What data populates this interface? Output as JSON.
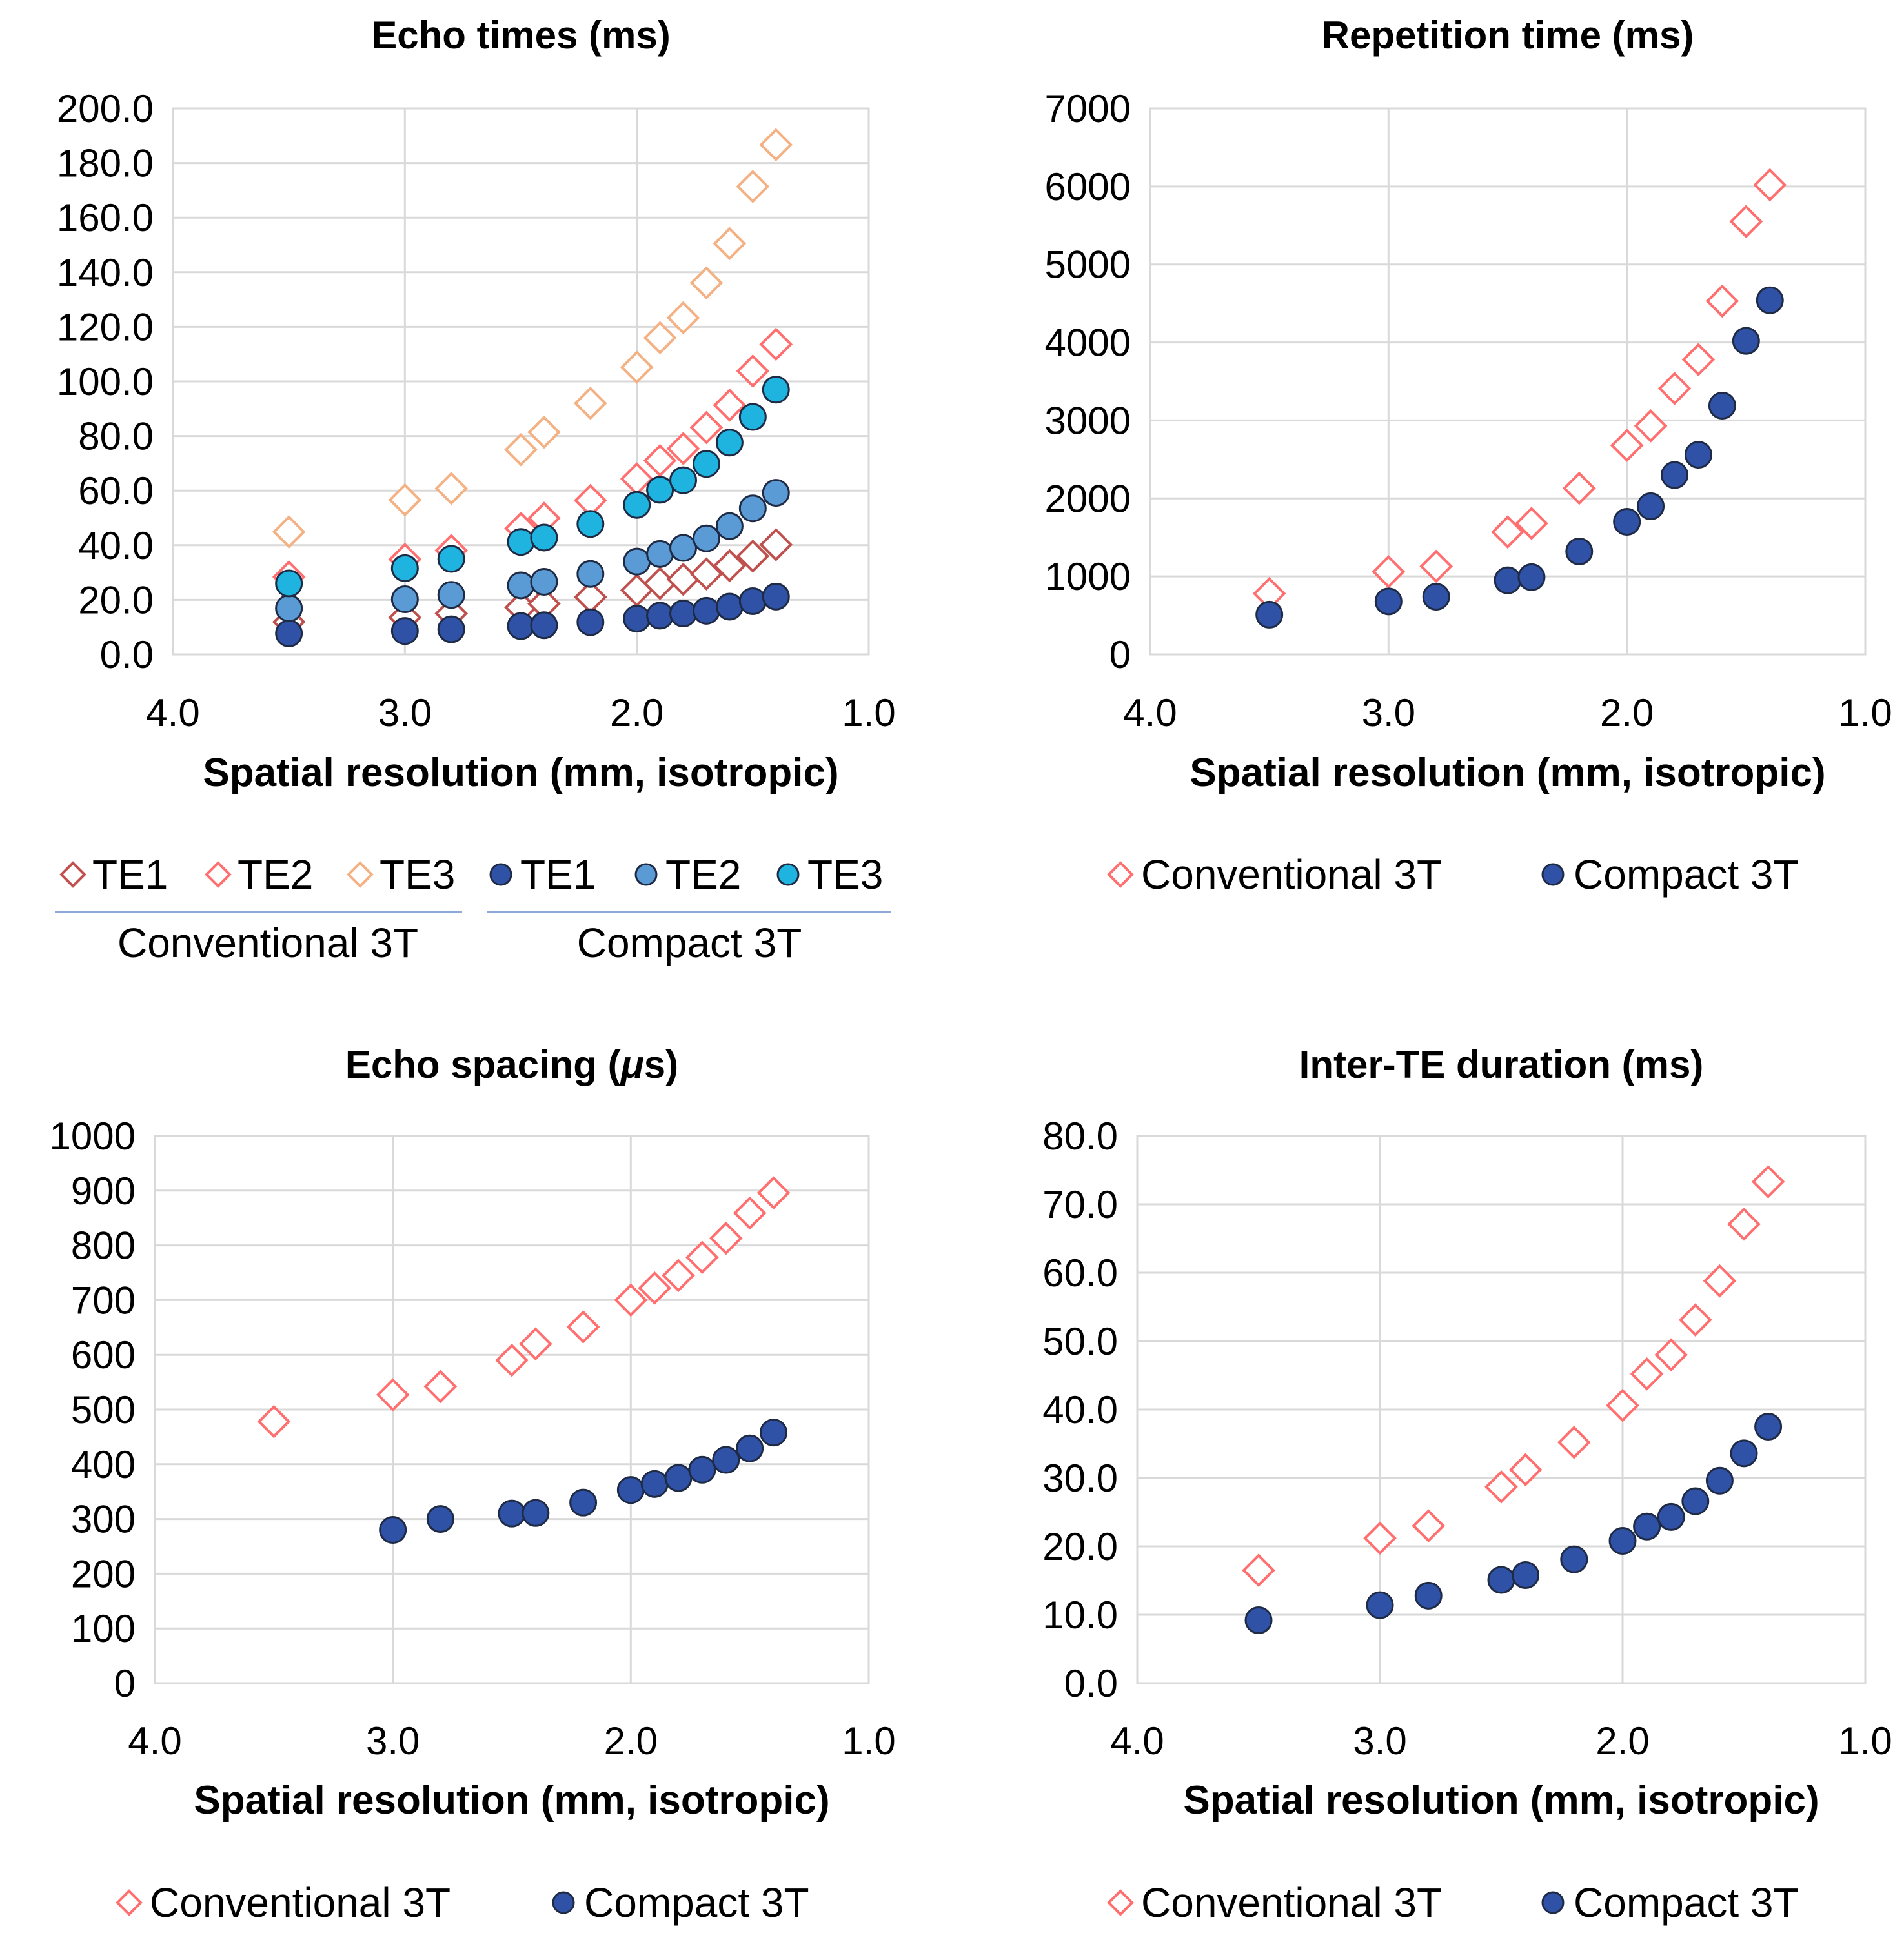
{
  "chart_data": [
    {
      "type": "scatter",
      "title": "Echo times (ms)",
      "xlabel": "Spatial resolution (mm, isotropic)",
      "ylabel": "",
      "xlim": [
        4.0,
        1.0
      ],
      "ylim": [
        0,
        200
      ],
      "x_ticks": [
        "4.0",
        "3.0",
        "2.0",
        "1.0"
      ],
      "y_ticks": [
        "0.0",
        "20.0",
        "40.0",
        "60.0",
        "80.0",
        "100.0",
        "120.0",
        "140.0",
        "160.0",
        "180.0",
        "200.0"
      ],
      "legend_position": "bottom",
      "legend_groups": [
        "Conventional 3T",
        "Compact 3T"
      ],
      "x": [
        3.5,
        3.0,
        2.8,
        2.5,
        2.4,
        2.2,
        2.0,
        1.9,
        1.8,
        1.7,
        1.6,
        1.5,
        1.4
      ],
      "series": [
        {
          "name": "TE1",
          "group": "Conventional 3T",
          "marker": "diamond-open",
          "color": "#c0504d",
          "values": [
            11.9,
            13.5,
            15.0,
            17.2,
            18.6,
            21.0,
            23.5,
            26.0,
            27.5,
            29.5,
            32.5,
            36.0,
            40.2
          ]
        },
        {
          "name": "TE2",
          "group": "Conventional 3T",
          "marker": "diamond-open",
          "color": "#ff6f6f",
          "values": [
            28.4,
            34.8,
            38.1,
            46.2,
            49.9,
            56.4,
            64.3,
            71.0,
            75.4,
            83.1,
            91.3,
            103.8,
            113.6
          ]
        },
        {
          "name": "TE3",
          "group": "Conventional 3T",
          "marker": "diamond-open",
          "color": "#f4b183",
          "values": [
            44.9,
            56.6,
            60.8,
            75.0,
            81.4,
            92.0,
            105.2,
            116.0,
            123.3,
            136.1,
            150.5,
            171.4,
            186.7
          ]
        },
        {
          "name": "TE1",
          "group": "Compact 3T",
          "marker": "circle",
          "color": "#2f52a6",
          "values": [
            7.7,
            8.6,
            9.2,
            10.4,
            10.7,
            11.8,
            13.1,
            14.2,
            15.0,
            16.0,
            17.5,
            19.5,
            21.2
          ]
        },
        {
          "name": "TE2",
          "group": "Compact 3T",
          "marker": "circle",
          "color": "#5b9bd5",
          "values": [
            16.9,
            20.2,
            21.8,
            25.3,
            26.6,
            29.5,
            34.0,
            36.8,
            39.0,
            42.5,
            47.0,
            53.5,
            59.2
          ]
        },
        {
          "name": "TE3",
          "group": "Compact 3T",
          "marker": "circle",
          "color": "#1fb4e0",
          "values": [
            26.0,
            31.6,
            35.0,
            41.2,
            42.8,
            47.8,
            54.8,
            60.3,
            63.8,
            69.8,
            77.6,
            87.0,
            97.0
          ]
        }
      ]
    },
    {
      "type": "scatter",
      "title": "Repetition time (ms)",
      "xlabel": "Spatial resolution (mm, isotropic)",
      "ylabel": "",
      "xlim": [
        4.0,
        1.0
      ],
      "ylim": [
        0,
        7000
      ],
      "x_ticks": [
        "4.0",
        "3.0",
        "2.0",
        "1.0"
      ],
      "y_ticks": [
        "0",
        "1000",
        "2000",
        "3000",
        "4000",
        "5000",
        "6000",
        "7000"
      ],
      "legend_position": "bottom",
      "series": [
        {
          "name": "Conventional 3T",
          "marker": "diamond-open",
          "color": "#ff6f6f",
          "x": [
            3.5,
            3.0,
            2.8,
            2.5,
            2.4,
            2.2,
            2.0,
            1.9,
            1.8,
            1.7,
            1.6,
            1.5,
            1.4
          ],
          "values": [
            780,
            1060,
            1130,
            1570,
            1680,
            2130,
            2680,
            2930,
            3410,
            3780,
            4530,
            5550,
            6020
          ]
        },
        {
          "name": "Compact 3T",
          "marker": "circle",
          "color": "#2f52a6",
          "x": [
            3.5,
            3.0,
            2.8,
            2.5,
            2.4,
            2.2,
            2.0,
            1.9,
            1.8,
            1.7,
            1.6,
            1.5,
            1.4
          ],
          "values": [
            510,
            680,
            740,
            950,
            990,
            1320,
            1700,
            1900,
            2300,
            2560,
            3190,
            4020,
            4540
          ]
        }
      ]
    },
    {
      "type": "scatter",
      "title": "Echo spacing (",
      "title_symbol": "μ",
      "title_tail": "s)",
      "xlabel": "Spatial resolution (mm, isotropic)",
      "ylabel": "",
      "xlim": [
        4.0,
        1.0
      ],
      "ylim": [
        0,
        1000
      ],
      "x_ticks": [
        "4.0",
        "3.0",
        "2.0",
        "1.0"
      ],
      "y_ticks": [
        "0",
        "100",
        "200",
        "300",
        "400",
        "500",
        "600",
        "700",
        "800",
        "900",
        "1000"
      ],
      "legend_position": "bottom",
      "series": [
        {
          "name": "Conventional 3T",
          "marker": "diamond-open",
          "color": "#ff6f6f",
          "x": [
            3.5,
            3.0,
            2.8,
            2.5,
            2.4,
            2.2,
            2.0,
            1.9,
            1.8,
            1.7,
            1.6,
            1.5,
            1.4
          ],
          "values": [
            478,
            527,
            542,
            590,
            620,
            651,
            700,
            722,
            745,
            778,
            813,
            859,
            896
          ]
        },
        {
          "name": "Compact 3T",
          "marker": "circle",
          "color": "#2f52a6",
          "x": [
            3.0,
            2.8,
            2.5,
            2.4,
            2.2,
            2.0,
            1.9,
            1.8,
            1.7,
            1.6,
            1.5,
            1.4
          ],
          "values": [
            280,
            300,
            310,
            311,
            330,
            353,
            364,
            375,
            390,
            408,
            429,
            458
          ]
        }
      ]
    },
    {
      "type": "scatter",
      "title": "Inter-TE duration (ms)",
      "xlabel": "Spatial resolution (mm, isotropic)",
      "ylabel": "",
      "xlim": [
        4.0,
        1.0
      ],
      "ylim": [
        0,
        80
      ],
      "x_ticks": [
        "4.0",
        "3.0",
        "2.0",
        "1.0"
      ],
      "y_ticks": [
        "0.0",
        "10.0",
        "20.0",
        "30.0",
        "40.0",
        "50.0",
        "60.0",
        "70.0",
        "80.0"
      ],
      "legend_position": "bottom",
      "series": [
        {
          "name": "Conventional 3T",
          "marker": "diamond-open",
          "color": "#ff6f6f",
          "x": [
            3.5,
            3.0,
            2.8,
            2.5,
            2.4,
            2.2,
            2.0,
            1.9,
            1.8,
            1.7,
            1.6,
            1.5,
            1.4
          ],
          "values": [
            16.5,
            21.2,
            23.0,
            28.7,
            31.2,
            35.2,
            40.6,
            45.2,
            48.0,
            53.1,
            58.8,
            67.1,
            73.3
          ]
        },
        {
          "name": "Compact 3T",
          "marker": "circle",
          "color": "#2f52a6",
          "x": [
            3.5,
            3.0,
            2.8,
            2.5,
            2.4,
            2.2,
            2.0,
            1.9,
            1.8,
            1.7,
            1.6,
            1.5,
            1.4
          ],
          "values": [
            9.2,
            11.4,
            12.8,
            15.1,
            15.8,
            18.1,
            20.8,
            22.9,
            24.3,
            26.6,
            29.6,
            33.6,
            37.5
          ]
        }
      ]
    }
  ]
}
